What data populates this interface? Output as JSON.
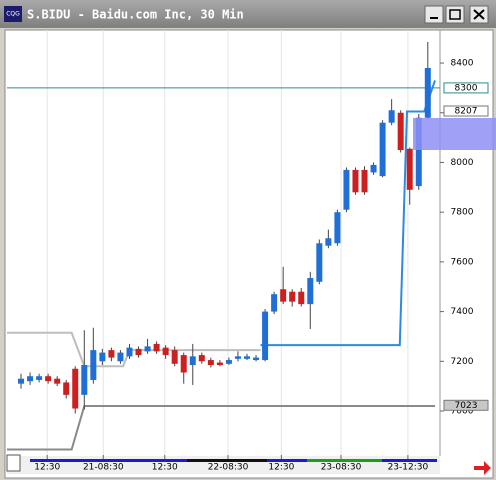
{
  "window_title": "S.BIDU - Baidu.com Inc, 30 Min",
  "icon_text": "CQG",
  "chart_data": {
    "type": "candlestick",
    "categories": [
      null,
      null,
      null,
      null,
      null,
      null,
      null,
      null,
      null,
      null,
      null,
      null,
      null,
      null,
      null,
      null,
      null,
      null,
      null,
      null,
      null,
      null,
      null,
      null,
      null,
      null,
      null,
      null,
      null,
      null,
      null,
      null,
      null,
      null,
      null,
      null,
      null,
      null,
      null,
      null,
      null,
      null,
      null,
      null,
      null,
      null
    ],
    "open": [
      7110,
      7120,
      7125,
      7140,
      7130,
      7115,
      7170,
      7065,
      7125,
      7200,
      7245,
      7200,
      7220,
      7250,
      7240,
      7270,
      7255,
      7245,
      7225,
      7185,
      7225,
      7205,
      7195,
      7190,
      7210,
      7210,
      7205,
      7205,
      7400,
      7490,
      7480,
      7480,
      7430,
      7520,
      7665,
      7675,
      7810,
      7970,
      7970,
      7960,
      7945,
      8160,
      8200,
      8055,
      7905,
      8180
    ],
    "high": [
      7150,
      7155,
      7150,
      7150,
      7140,
      7125,
      7180,
      7325,
      7335,
      7250,
      7255,
      7245,
      7270,
      7260,
      7290,
      7280,
      7265,
      7260,
      7235,
      7270,
      7235,
      7215,
      7205,
      7215,
      7240,
      7230,
      7225,
      7410,
      7480,
      7580,
      7490,
      7495,
      7560,
      7690,
      7730,
      7810,
      7980,
      7980,
      7985,
      8000,
      8170,
      8255,
      8210,
      8060,
      8195,
      8485
    ],
    "low": [
      7090,
      7105,
      7115,
      7110,
      7100,
      7050,
      6990,
      7005,
      7110,
      7185,
      7200,
      7190,
      7210,
      7215,
      7230,
      7230,
      7210,
      7180,
      7110,
      7105,
      7190,
      7175,
      7180,
      7185,
      7200,
      7205,
      7200,
      7200,
      7390,
      7430,
      7420,
      7420,
      7330,
      7510,
      7655,
      7665,
      7800,
      7870,
      7870,
      7950,
      7940,
      8150,
      8040,
      7830,
      7890,
      8175
    ],
    "close": [
      7130,
      7140,
      7140,
      7120,
      7110,
      7065,
      7010,
      7185,
      7245,
      7235,
      7215,
      7235,
      7255,
      7225,
      7260,
      7240,
      7225,
      7190,
      7155,
      7220,
      7200,
      7185,
      7185,
      7205,
      7220,
      7220,
      7215,
      7400,
      7470,
      7440,
      7440,
      7430,
      7535,
      7675,
      7695,
      7800,
      7970,
      7880,
      7880,
      7990,
      8160,
      8210,
      8050,
      7890,
      8180,
      8380
    ],
    "up_color": "#1f6fd6",
    "down_color": "#cc2020",
    "lines": [
      {
        "color": "#bdbdbd",
        "x": [
          -1.55,
          5.6,
          7.0,
          11.3,
          12.0,
          26.5
        ],
        "values": [
          7315,
          7315,
          7180,
          7180,
          7245,
          7245
        ]
      },
      {
        "color": "#8a8a8a",
        "x": [
          -1.55,
          5.6,
          7.0,
          45.8
        ],
        "values": [
          6845,
          6845,
          7020,
          7020
        ]
      },
      {
        "color": "#2b8be3",
        "x": [
          26.5,
          41.9,
          42.7,
          44.6,
          45.8
        ],
        "values": [
          7265,
          7265,
          8205,
          8205,
          8330
        ]
      }
    ],
    "reference_line": {
      "value": 8300,
      "color": "#2e8b8b"
    },
    "price_tags": [
      8300,
      8207,
      7023
    ],
    "xlim": [
      -1.55,
      46.35
    ],
    "ylim": [
      6823,
      8533
    ],
    "yticks": [
      7000,
      7200,
      7400,
      7600,
      7800,
      8000,
      8200,
      8400
    ],
    "xticks": [
      {
        "value": 2.9,
        "label": "12:30"
      },
      {
        "value": 9.1,
        "label": "21-08:30"
      },
      {
        "value": 15.9,
        "label": "12:30"
      },
      {
        "value": 22.9,
        "label": "22-08:30"
      },
      {
        "value": 28.8,
        "label": "12:30"
      },
      {
        "value": 35.4,
        "label": "23-08:30"
      },
      {
        "value": 42.8,
        "label": "23-12:30"
      }
    ]
  }
}
